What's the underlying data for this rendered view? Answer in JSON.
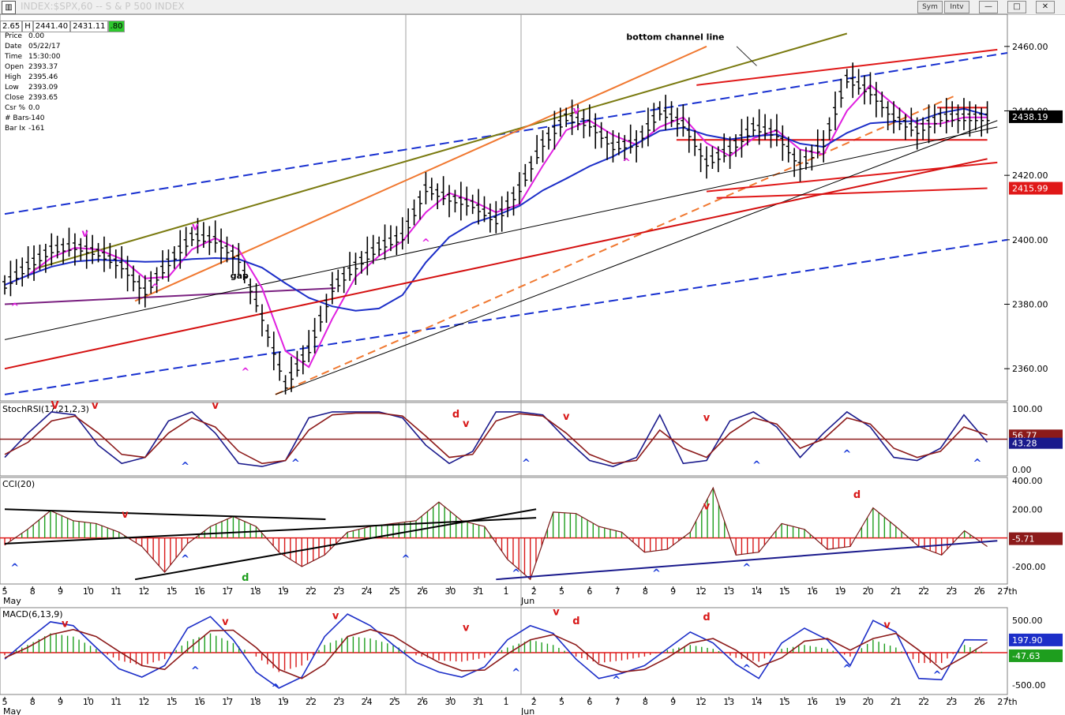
{
  "window": {
    "title": "INDEX:$SPX,60 -- S & P 500 INDEX",
    "buttons": [
      "Sym",
      "Intv"
    ]
  },
  "quote_bar": {
    "cells": [
      "2.65",
      "H",
      "2441.40",
      "2431.11",
      ".80"
    ]
  },
  "info_panel": [
    {
      "label": "Price",
      "value": "0.00"
    },
    {
      "label": "Date",
      "value": "05/22/17"
    },
    {
      "label": "Time",
      "value": "15:30:00"
    },
    {
      "label": "Open",
      "value": "2393.37"
    },
    {
      "label": "High",
      "value": "2395.46"
    },
    {
      "label": "Low",
      "value": "2393.09"
    },
    {
      "label": "Close",
      "value": "2393.65"
    },
    {
      "label": "Csr %",
      "value": "0.0"
    },
    {
      "label": "# Bars",
      "value": "-140"
    },
    {
      "label": "Bar Ix",
      "value": "-161"
    }
  ],
  "colors": {
    "price_bar": "#000000",
    "ma_short": "#e020e0",
    "ma_mid": "#1c2ec8",
    "ma_long": "#d41010",
    "channel_blue": "#1830d0",
    "channel_olive": "#7a7a10",
    "channel_orange": "#f07830",
    "channel_red": "#e01818",
    "purple_line": "#7a2080",
    "rsi_fast": "#1a1a8c",
    "rsi_slow": "#8c1a1a",
    "hist_pos": "#1e9e1e",
    "hist_neg": "#d81818",
    "marker_up": "#1a3ad8",
    "marker_down": "#d81818",
    "marker_magenta": "#e020e0"
  },
  "annotations": {
    "bottom_channel_line": "bottom channel line",
    "gap": "gap"
  },
  "chart_data": [
    {
      "type": "bar",
      "subtype": "ohlc",
      "pane": "price",
      "title": "INDEX:$SPX,60 -- S & P 500 INDEX",
      "ylim": [
        2350,
        2470
      ],
      "y_ticks": [
        "2460.00",
        "2440.00",
        "2420.00",
        "2400.00",
        "2380.00",
        "2360.00"
      ],
      "badges": [
        {
          "label": "2438.19",
          "value": 2438.19,
          "color": "#000000"
        },
        {
          "label": "2415.99",
          "value": 2415.99,
          "color": "#e01818"
        }
      ],
      "x_ticks": [
        "5",
        "8",
        "9",
        "10",
        "11",
        "12",
        "15",
        "16",
        "17",
        "18",
        "19",
        "22",
        "23",
        "24",
        "25",
        "26",
        "30",
        "31",
        "1",
        "2",
        "5",
        "6",
        "7",
        "8",
        "9",
        "12",
        "13",
        "14",
        "15",
        "16",
        "19",
        "20",
        "21",
        "22",
        "23",
        "26",
        "27th"
      ],
      "month_labels": [
        "May",
        "Jun"
      ],
      "close_path": [
        2386,
        2392,
        2397,
        2398,
        2396,
        2392,
        2384,
        2393,
        2401,
        2400,
        2394,
        2376,
        2355,
        2366,
        2385,
        2392,
        2398,
        2401,
        2416,
        2413,
        2411,
        2406,
        2416,
        2430,
        2438,
        2436,
        2429,
        2430,
        2440,
        2436,
        2424,
        2428,
        2435,
        2433,
        2423,
        2430,
        2450,
        2446,
        2438,
        2434,
        2438,
        2438,
        2438
      ],
      "markers": [
        {
          "text": "^",
          "at": 0.01,
          "value": 2378,
          "color": "#e020e0"
        },
        {
          "text": "v",
          "at": 0.08,
          "value": 2401,
          "color": "#e020e0"
        },
        {
          "text": "^",
          "at": 0.15,
          "value": 2384,
          "color": "#e020e0"
        },
        {
          "text": "v",
          "at": 0.19,
          "value": 2403,
          "color": "#e020e0"
        },
        {
          "text": "^",
          "at": 0.24,
          "value": 2358,
          "color": "#e020e0"
        },
        {
          "text": "^",
          "at": 0.42,
          "value": 2398,
          "color": "#e020e0"
        },
        {
          "text": "v",
          "at": 0.57,
          "value": 2439,
          "color": "#e020e0"
        },
        {
          "text": "^",
          "at": 0.62,
          "value": 2423,
          "color": "#e020e0"
        }
      ]
    },
    {
      "type": "line",
      "pane": "stochrsi",
      "title": "StochRSI(17,21,2,3)",
      "ylim": [
        0,
        100
      ],
      "y_ticks": [
        "100.00",
        "0.00"
      ],
      "badges": [
        {
          "label": "56.77",
          "value": 56.77,
          "color": "#8c1a1a"
        },
        {
          "label": "43.28",
          "value": 43.28,
          "color": "#1a1a8c"
        }
      ],
      "series": [
        {
          "values": [
            20,
            60,
            95,
            90,
            40,
            10,
            20,
            80,
            95,
            60,
            10,
            5,
            15,
            85,
            95,
            95,
            95,
            85,
            40,
            10,
            30,
            95,
            95,
            90,
            50,
            15,
            5,
            20,
            90,
            10,
            15,
            80,
            95,
            70,
            20,
            60,
            95,
            70,
            20,
            15,
            35,
            90,
            45
          ]
        },
        {
          "values": [
            25,
            45,
            80,
            88,
            60,
            25,
            20,
            60,
            85,
            70,
            30,
            10,
            15,
            65,
            90,
            93,
            93,
            88,
            55,
            20,
            25,
            80,
            92,
            88,
            60,
            25,
            10,
            15,
            65,
            35,
            20,
            60,
            85,
            75,
            35,
            50,
            85,
            75,
            35,
            20,
            30,
            70,
            57
          ]
        }
      ],
      "markers": [
        {
          "text": "V",
          "at": 0.05,
          "value": 100,
          "color": "#d81818"
        },
        {
          "text": "v",
          "at": 0.09,
          "value": 100,
          "color": "#d81818"
        },
        {
          "text": "v",
          "at": 0.21,
          "value": 100,
          "color": "#d81818"
        },
        {
          "text": "^",
          "at": 0.18,
          "value": 0,
          "color": "#1a3ad8"
        },
        {
          "text": "^",
          "at": 0.29,
          "value": 5,
          "color": "#1a3ad8"
        },
        {
          "text": "d",
          "at": 0.45,
          "value": 86,
          "color": "#d81818"
        },
        {
          "text": "v",
          "at": 0.46,
          "value": 70,
          "color": "#d81818"
        },
        {
          "text": "^",
          "at": 0.52,
          "value": 5,
          "color": "#1a3ad8"
        },
        {
          "text": "v",
          "at": 0.56,
          "value": 82,
          "color": "#d81818"
        },
        {
          "text": "v",
          "at": 0.7,
          "value": 80,
          "color": "#d81818"
        },
        {
          "text": "^",
          "at": 0.75,
          "value": 2,
          "color": "#1a3ad8"
        },
        {
          "text": "^",
          "at": 0.84,
          "value": 20,
          "color": "#1a3ad8"
        },
        {
          "text": "^",
          "at": 0.97,
          "value": 5,
          "color": "#1a3ad8"
        }
      ]
    },
    {
      "type": "bar",
      "pane": "cci",
      "title": "CCI(20)",
      "ylim": [
        -300,
        400
      ],
      "y_ticks": [
        "400.00",
        "200.00",
        "-200.00"
      ],
      "badges": [
        {
          "label": "-5.71",
          "value": -5.71,
          "color": "#8c1a1a"
        }
      ],
      "values": [
        -50,
        60,
        190,
        120,
        100,
        40,
        -60,
        -240,
        -40,
        80,
        150,
        80,
        -100,
        -200,
        -120,
        40,
        80,
        100,
        120,
        250,
        120,
        80,
        -150,
        -290,
        180,
        170,
        80,
        40,
        -100,
        -80,
        40,
        350,
        -120,
        -100,
        100,
        60,
        -80,
        -60,
        210,
        80,
        -60,
        -120,
        50,
        -60
      ],
      "markers": [
        {
          "text": "v",
          "at": 0.12,
          "value": 140,
          "color": "#d81818"
        },
        {
          "text": "^",
          "at": 0.01,
          "value": -230,
          "color": "#1a3ad8"
        },
        {
          "text": "^",
          "at": 0.18,
          "value": -170,
          "color": "#1a3ad8"
        },
        {
          "text": "d",
          "at": 0.24,
          "value": -300,
          "color": "#1e9e1e"
        },
        {
          "text": "^",
          "at": 0.4,
          "value": -170,
          "color": "#1a3ad8"
        },
        {
          "text": "^",
          "at": 0.51,
          "value": -270,
          "color": "#1a3ad8"
        },
        {
          "text": "^",
          "at": 0.65,
          "value": -270,
          "color": "#1a3ad8"
        },
        {
          "text": "v",
          "at": 0.7,
          "value": 200,
          "color": "#d81818"
        },
        {
          "text": "^",
          "at": 0.74,
          "value": -230,
          "color": "#1a3ad8"
        },
        {
          "text": "d",
          "at": 0.85,
          "value": 280,
          "color": "#d81818"
        }
      ]
    },
    {
      "type": "bar",
      "pane": "macd",
      "title": "MACD(6,13,9)",
      "ylim": [
        -600,
        650
      ],
      "y_ticks": [
        "500.00",
        "-500.00"
      ],
      "badges": [
        {
          "label": "197.90",
          "value": 197.9,
          "color": "#1c2ec8"
        },
        {
          "label": "-47.63",
          "value": -47.63,
          "color": "#1e9e1e"
        }
      ],
      "x_ticks": [
        "5",
        "8",
        "9",
        "10",
        "11",
        "12",
        "15",
        "16",
        "17",
        "18",
        "19",
        "22",
        "23",
        "24",
        "25",
        "26",
        "30",
        "31",
        "1",
        "2",
        "5",
        "6",
        "7",
        "8",
        "9",
        "12",
        "13",
        "14",
        "15",
        "16",
        "19",
        "20",
        "21",
        "22",
        "23",
        "26",
        "27th"
      ],
      "month_labels": [
        "May",
        "Jun"
      ],
      "histogram": [
        -40,
        120,
        300,
        250,
        60,
        -120,
        -200,
        -100,
        180,
        300,
        150,
        -60,
        -300,
        -200,
        120,
        260,
        220,
        120,
        -40,
        -120,
        -140,
        -80,
        80,
        200,
        120,
        -60,
        -160,
        -120,
        -60,
        40,
        120,
        60,
        -80,
        -140,
        60,
        120,
        60,
        -60,
        200,
        80,
        -160,
        -160,
        120,
        -20
      ],
      "series": [
        {
          "values": [
            -100,
            200,
            480,
            420,
            80,
            -250,
            -380,
            -200,
            380,
            560,
            200,
            -300,
            -550,
            -380,
            250,
            600,
            420,
            120,
            -150,
            -300,
            -380,
            -220,
            200,
            420,
            300,
            -100,
            -400,
            -320,
            -200,
            60,
            320,
            150,
            -180,
            -400,
            150,
            380,
            200,
            -200,
            500,
            320,
            -400,
            -420,
            200,
            198
          ]
        },
        {
          "values": [
            -80,
            80,
            280,
            360,
            250,
            20,
            -200,
            -260,
            50,
            340,
            350,
            80,
            -260,
            -400,
            -180,
            250,
            360,
            260,
            40,
            -150,
            -280,
            -270,
            -20,
            200,
            280,
            120,
            -180,
            -300,
            -260,
            -80,
            150,
            220,
            40,
            -220,
            -80,
            180,
            220,
            40,
            220,
            300,
            40,
            -260,
            -60,
            160
          ]
        }
      ],
      "markers": [
        {
          "text": "v",
          "at": 0.06,
          "value": 400,
          "color": "#d81818"
        },
        {
          "text": "v",
          "at": 0.22,
          "value": 430,
          "color": "#d81818"
        },
        {
          "text": "^",
          "at": 0.19,
          "value": -330,
          "color": "#1a3ad8"
        },
        {
          "text": "^",
          "at": 0.27,
          "value": -600,
          "color": "#1a3ad8"
        },
        {
          "text": "v",
          "at": 0.33,
          "value": 520,
          "color": "#d81818"
        },
        {
          "text": "v",
          "at": 0.46,
          "value": 340,
          "color": "#d81818"
        },
        {
          "text": "^",
          "at": 0.51,
          "value": -360,
          "color": "#1a3ad8"
        },
        {
          "text": "v",
          "at": 0.55,
          "value": 580,
          "color": "#d81818"
        },
        {
          "text": "d",
          "at": 0.57,
          "value": 440,
          "color": "#d81818"
        },
        {
          "text": "^",
          "at": 0.61,
          "value": -480,
          "color": "#1a3ad8"
        },
        {
          "text": "d",
          "at": 0.7,
          "value": 500,
          "color": "#d81818"
        },
        {
          "text": "^",
          "at": 0.74,
          "value": -300,
          "color": "#1a3ad8"
        },
        {
          "text": "^",
          "at": 0.84,
          "value": -300,
          "color": "#1a3ad8"
        },
        {
          "text": "v",
          "at": 0.88,
          "value": 380,
          "color": "#d81818"
        },
        {
          "text": "^",
          "at": 0.93,
          "value": -400,
          "color": "#1a3ad8"
        }
      ]
    }
  ]
}
